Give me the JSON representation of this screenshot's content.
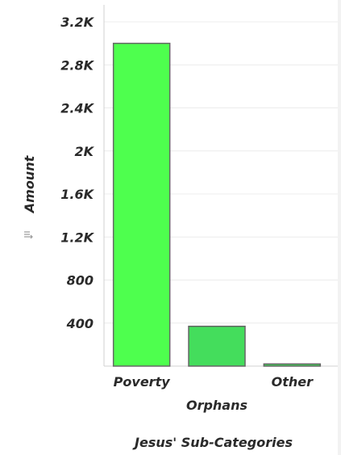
{
  "chart_data": {
    "type": "bar",
    "categories": [
      "Poverty",
      "Orphans",
      "Other"
    ],
    "values": [
      3000,
      370,
      20
    ],
    "xlabel": "Jesus' Sub-Categories",
    "ylabel": "Amount",
    "ylim": [
      0,
      3200
    ],
    "yticks": [
      400,
      800,
      1200,
      1600,
      2000,
      2400,
      2800,
      3200
    ],
    "ytick_labels": [
      "400",
      "800",
      "1.2K",
      "1.6K",
      "2K",
      "2.4K",
      "2.8K",
      "3.2K"
    ],
    "grid": true,
    "bar_colors": [
      "#4eff4e",
      "#44dd5c",
      "#3fcf55"
    ],
    "bar_edge_color": "#666666"
  },
  "ui": {
    "sort_icon": "sort-icon"
  }
}
